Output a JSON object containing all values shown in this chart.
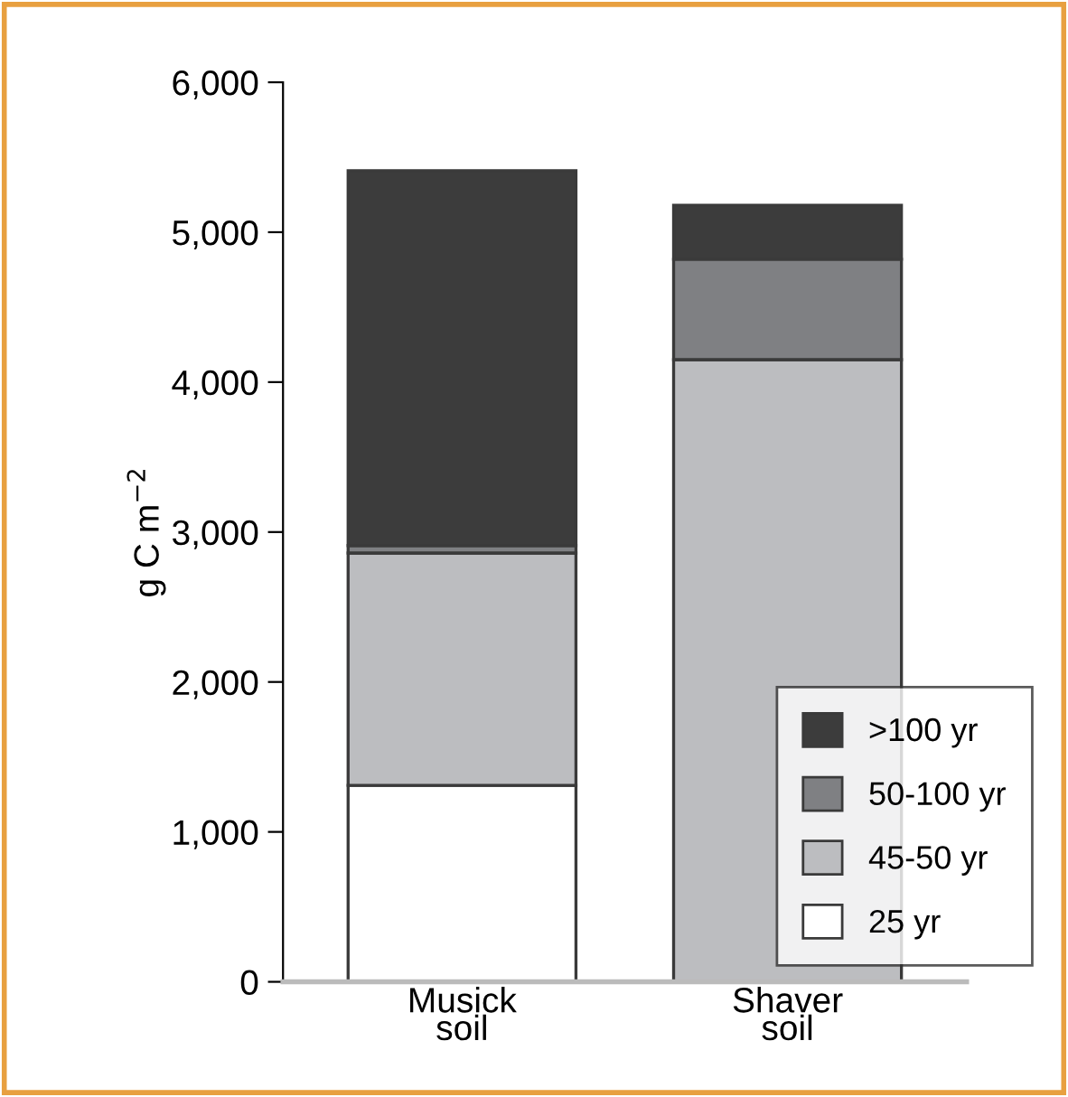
{
  "chart_data": {
    "type": "bar",
    "stacked": true,
    "ylabel": "g C m$^{−2}$",
    "categories": [
      "Musick\nsoil",
      "Shaver\nsoil"
    ],
    "series": [
      {
        "name": "25 yr",
        "color": "#ffffff",
        "values": [
          1310,
          0
        ]
      },
      {
        "name": "45-50 yr",
        "color": "#bcbdc0",
        "values": [
          1550,
          4150
        ]
      },
      {
        "name": "50-100 yr",
        "color": "#7f8083",
        "values": [
          50,
          670
        ]
      },
      {
        "name": ">100 yr",
        "color": "#3c3c3c",
        "values": [
          2500,
          360
        ]
      }
    ],
    "ylim": [
      0,
      6000
    ],
    "yticks": [
      {
        "value": 0,
        "label": "0"
      },
      {
        "value": 1000,
        "label": "1,000"
      },
      {
        "value": 2000,
        "label": "2,000"
      },
      {
        "value": 3000,
        "label": "3,000"
      },
      {
        "value": 4000,
        "label": "4,000"
      },
      {
        "value": 5000,
        "label": "5,000"
      },
      {
        "value": 6000,
        "label": "6,000"
      }
    ],
    "legend": "bottom right",
    "grid": false
  }
}
